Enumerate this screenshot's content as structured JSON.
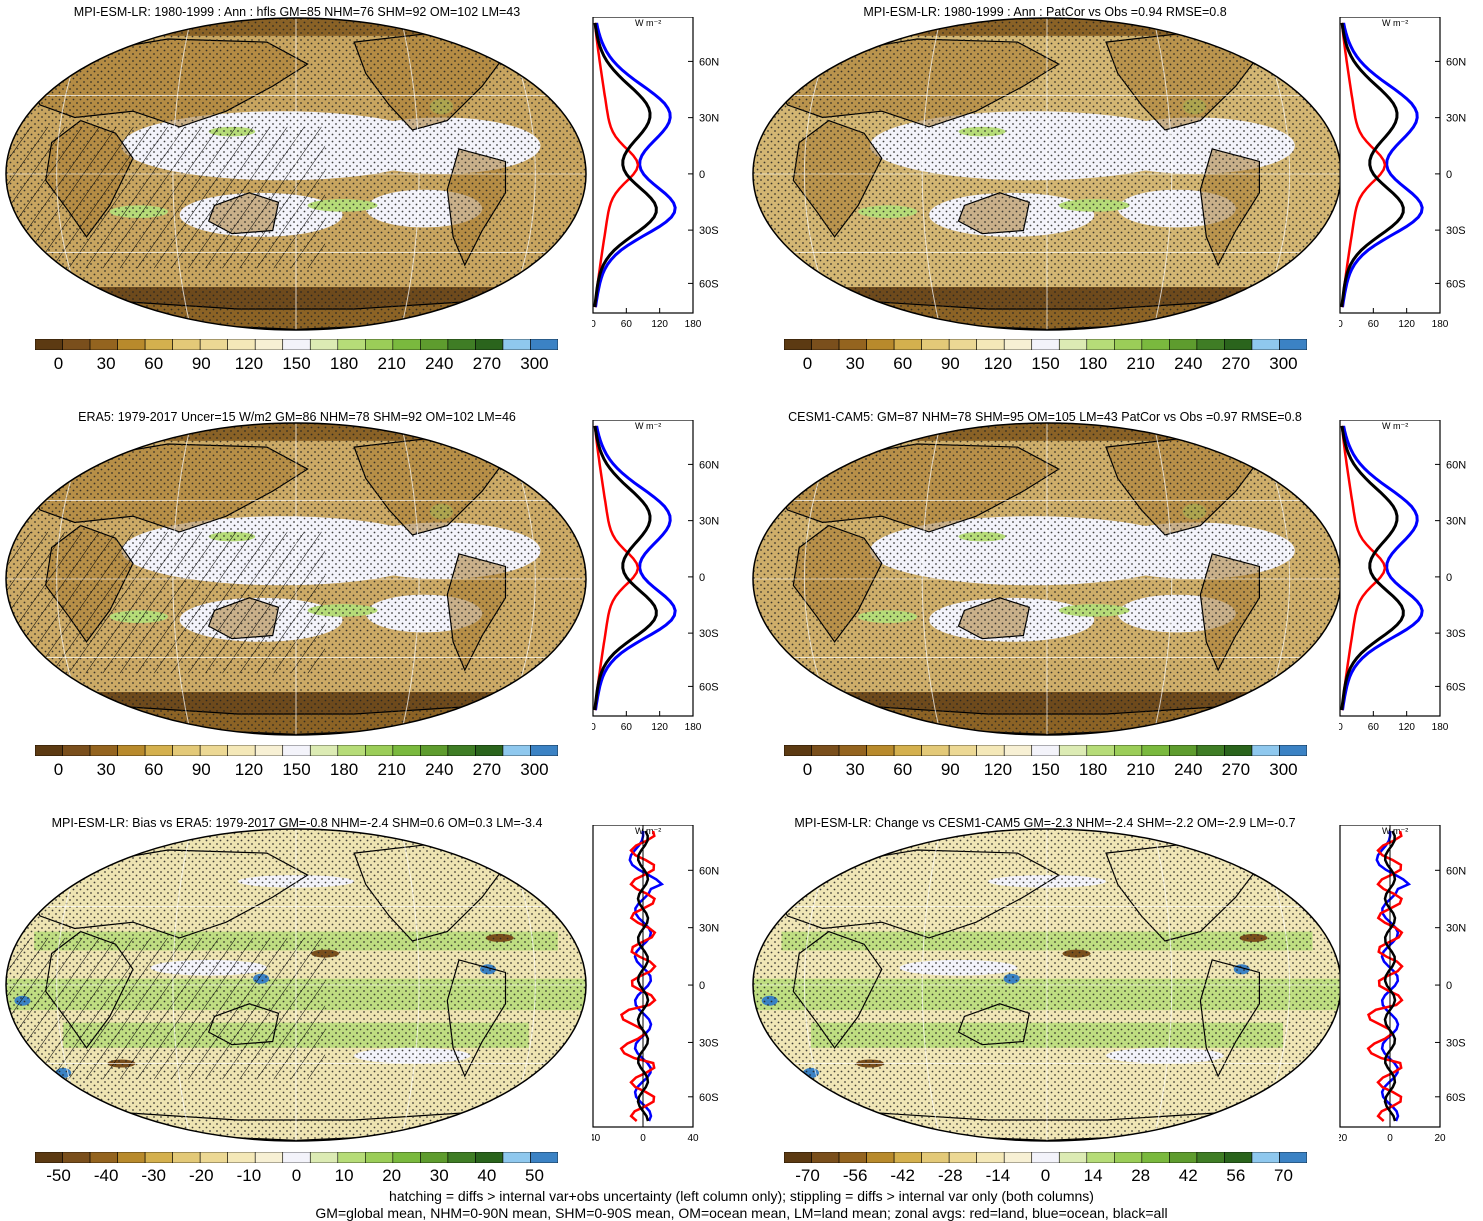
{
  "panels": [
    {
      "title": "MPI-ESM-LR: 1980-1999 : Ann : hfls GM=85 NHM=76 SHM=92 OM=102 LM=43",
      "map_type": "abs",
      "hatch": true,
      "fill": "#c8a560",
      "colorbar_labels": [
        "0",
        "30",
        "60",
        "90",
        "120",
        "150",
        "180",
        "210",
        "240",
        "270",
        "300"
      ],
      "zonal": {
        "xticks": [
          "0",
          "60",
          "120",
          "180"
        ],
        "yticks": [
          "60N",
          "30N",
          "0",
          "30S",
          "60S"
        ],
        "unit": "W m⁻²"
      }
    },
    {
      "title": "MPI-ESM-LR: 1980-1999 : Ann : PatCor vs Obs =0.94 RMSE=0.8",
      "map_type": "abs",
      "hatch": false,
      "fill": "#d3b673",
      "colorbar_labels": [
        "0",
        "30",
        "60",
        "90",
        "120",
        "150",
        "180",
        "210",
        "240",
        "270",
        "300"
      ],
      "zonal": {
        "xticks": [
          "0",
          "60",
          "120",
          "180"
        ],
        "yticks": [
          "60N",
          "30N",
          "0",
          "30S",
          "60S"
        ],
        "unit": "W m⁻²"
      }
    },
    {
      "title": "ERA5: 1979-2017 Uncer=15 W/m2 GM=86 NHM=78 SHM=92 OM=102 LM=46",
      "map_type": "abs",
      "hatch": true,
      "fill": "#ccaa66",
      "colorbar_labels": [
        "0",
        "30",
        "60",
        "90",
        "120",
        "150",
        "180",
        "210",
        "240",
        "270",
        "300"
      ],
      "zonal": {
        "xticks": [
          "0",
          "60",
          "120",
          "180"
        ],
        "yticks": [
          "60N",
          "30N",
          "0",
          "30S",
          "60S"
        ],
        "unit": "W m⁻²"
      }
    },
    {
      "title": "CESM1-CAM5: GM=87 NHM=78 SHM=95 OM=105 LM=43 PatCor vs Obs =0.97 RMSE=0.8",
      "map_type": "abs",
      "hatch": false,
      "fill": "#ceae6a",
      "colorbar_labels": [
        "0",
        "30",
        "60",
        "90",
        "120",
        "150",
        "180",
        "210",
        "240",
        "270",
        "300"
      ],
      "zonal": {
        "xticks": [
          "0",
          "60",
          "120",
          "180"
        ],
        "yticks": [
          "60N",
          "30N",
          "0",
          "30S",
          "60S"
        ],
        "unit": "W m⁻²"
      }
    },
    {
      "title": "MPI-ESM-LR: Bias vs ERA5: 1979-2017 GM=-0.8 NHM=-2.4 SHM=0.6 OM=0.3 LM=-3.4",
      "map_type": "diff",
      "hatch": true,
      "fill": "#eee4b2",
      "colorbar_labels": [
        "-50",
        "-40",
        "-30",
        "-20",
        "-10",
        "0",
        "10",
        "20",
        "30",
        "40",
        "50"
      ],
      "zonal": {
        "xticks": [
          "-40",
          "0",
          "40"
        ],
        "yticks": [
          "60N",
          "30N",
          "0",
          "30S",
          "60S"
        ],
        "unit": "W m⁻²"
      }
    },
    {
      "title": "MPI-ESM-LR: Change vs CESM1-CAM5 GM=-2.3 NHM=-2.4 SHM=-2.2 OM=-2.9 LM=-0.7",
      "map_type": "diff",
      "hatch": false,
      "fill": "#f0e6b6",
      "colorbar_labels": [
        "-70",
        "-56",
        "-42",
        "-28",
        "-14",
        "0",
        "14",
        "28",
        "42",
        "56",
        "70"
      ],
      "zonal": {
        "xticks": [
          "-20",
          "0",
          "20"
        ],
        "yticks": [
          "60N",
          "30N",
          "0",
          "30S",
          "60S"
        ],
        "unit": "W m⁻²"
      }
    }
  ],
  "colorbar_colors": [
    "#5c3a12",
    "#7a4f1c",
    "#94641f",
    "#b88a2c",
    "#d4b04e",
    "#e3c978",
    "#ecd894",
    "#f4e8b8",
    "#f7f0d4",
    "#f3f3fa",
    "#dcebb4",
    "#b6dc78",
    "#9bcd58",
    "#7ab93e",
    "#5e9c2e",
    "#3f7d25",
    "#2a641c",
    "#8fc8ee",
    "#3b82c4"
  ],
  "zonal_colors": {
    "land": "#ff0000",
    "ocean": "#0000ff",
    "all": "#000000"
  },
  "footer": {
    "line1": "hatching = diffs > internal var+obs uncertainty (left column only); stippling = diffs > internal var only (both columns)",
    "line2": "GM=global mean, NHM=0-90N mean, SHM=0-90S mean, OM=ocean mean, LM=land mean; zonal avgs: red=land, blue=ocean, black=all"
  }
}
